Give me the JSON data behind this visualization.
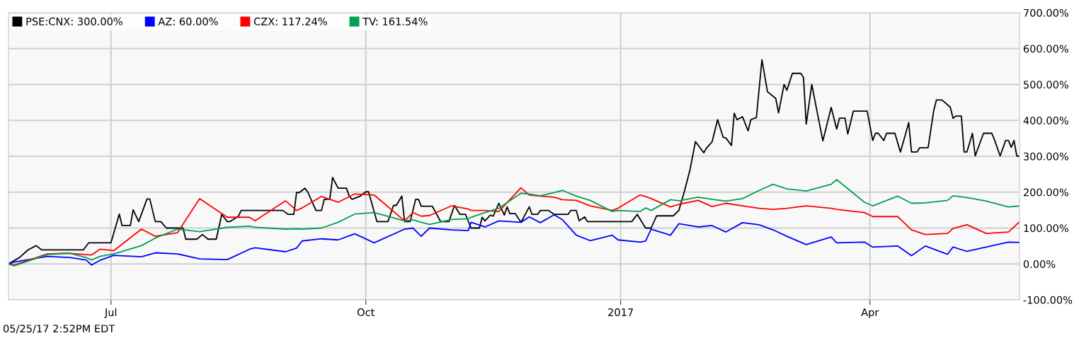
{
  "chart_data": {
    "type": "line",
    "xlim": [
      "2016-05-25",
      "2017-05-25"
    ],
    "xticks": [
      {
        "value": "2016-07-01",
        "label": "Jul"
      },
      {
        "value": "2016-10-01",
        "label": "Oct"
      },
      {
        "value": "2017-01-01",
        "label": "2017"
      },
      {
        "value": "2017-04-01",
        "label": "Apr"
      }
    ],
    "ylim": [
      -100,
      700
    ],
    "yticks": [
      {
        "value": -100,
        "label": "-100.00%"
      },
      {
        "value": 0,
        "label": "0.00%"
      },
      {
        "value": 100,
        "label": "100.00%"
      },
      {
        "value": 200,
        "label": "200.00%"
      },
      {
        "value": 300,
        "label": "300.00%"
      },
      {
        "value": 400,
        "label": "400.00%"
      },
      {
        "value": 500,
        "label": "500.00%"
      },
      {
        "value": 600,
        "label": "600.00%"
      },
      {
        "value": 700,
        "label": "700.00%"
      }
    ],
    "grid": true,
    "legend": "top left",
    "marker": "none",
    "line_style": "solid",
    "annotations": [
      "05/25/17 2:52PM EDT"
    ],
    "x": [
      "2016-05-25",
      "2016-05-27",
      "2016-06-08",
      "2016-06-16",
      "2016-06-22",
      "2016-06-24",
      "2016-06-27",
      "2016-07-02",
      "2016-07-12",
      "2016-07-17",
      "2016-07-25",
      "2016-08-02",
      "2016-08-12",
      "2016-08-20",
      "2016-08-22",
      "2016-09-02",
      "2016-09-06",
      "2016-09-08",
      "2016-09-15",
      "2016-09-21",
      "2016-09-27",
      "2016-10-04",
      "2016-10-15",
      "2016-10-18",
      "2016-10-21",
      "2016-10-24",
      "2016-11-01",
      "2016-11-07",
      "2016-11-08",
      "2016-11-13",
      "2016-11-18",
      "2016-11-26",
      "2016-11-29",
      "2016-12-03",
      "2016-12-08",
      "2016-12-11",
      "2016-12-16",
      "2016-12-21",
      "2016-12-29",
      "2016-12-31",
      "2017-01-08",
      "2017-01-10",
      "2017-01-12",
      "2017-01-19",
      "2017-01-22",
      "2017-01-29",
      "2017-02-03",
      "2017-02-08",
      "2017-02-14",
      "2017-02-20",
      "2017-02-25",
      "2017-03-02",
      "2017-03-09",
      "2017-03-18",
      "2017-03-20",
      "2017-03-30",
      "2017-04-02",
      "2017-04-11",
      "2017-04-16",
      "2017-04-21",
      "2017-04-29",
      "2017-05-01",
      "2017-05-06",
      "2017-05-13",
      "2017-05-21",
      "2017-05-25"
    ],
    "series": [
      {
        "name": "PSE:CNX: 300.00%",
        "color": "#000000",
        "x": [
          "2016-05-25",
          "2016-05-29",
          "2016-06-01",
          "2016-06-04",
          "2016-06-06",
          "2016-06-21",
          "2016-06-23",
          "2016-07-01",
          "2016-07-04",
          "2016-07-05",
          "2016-07-08",
          "2016-07-09",
          "2016-07-11",
          "2016-07-14",
          "2016-07-15",
          "2016-07-17",
          "2016-07-19",
          "2016-07-21",
          "2016-07-27",
          "2016-07-28",
          "2016-08-01",
          "2016-08-03",
          "2016-08-05",
          "2016-08-08",
          "2016-08-10",
          "2016-08-12",
          "2016-08-13",
          "2016-08-16",
          "2016-08-17",
          "2016-09-01",
          "2016-09-03",
          "2016-09-05",
          "2016-09-06",
          "2016-09-07",
          "2016-09-09",
          "2016-09-10",
          "2016-09-13",
          "2016-09-15",
          "2016-09-16",
          "2016-09-18",
          "2016-09-19",
          "2016-09-21",
          "2016-09-24",
          "2016-09-25",
          "2016-09-26",
          "2016-09-29",
          "2016-10-01",
          "2016-10-02",
          "2016-10-05",
          "2016-10-09",
          "2016-10-11",
          "2016-10-12",
          "2016-10-14",
          "2016-10-15",
          "2016-10-17",
          "2016-10-19",
          "2016-10-20",
          "2016-10-21",
          "2016-10-25",
          "2016-10-28",
          "2016-10-31",
          "2016-11-02",
          "2016-11-04",
          "2016-11-06",
          "2016-11-08",
          "2016-11-11",
          "2016-11-12",
          "2016-11-13",
          "2016-11-15",
          "2016-11-16",
          "2016-11-18",
          "2016-11-20",
          "2016-11-21",
          "2016-11-22",
          "2016-11-24",
          "2016-11-26",
          "2016-11-29",
          "2016-11-30",
          "2016-12-02",
          "2016-12-03",
          "2016-12-06",
          "2016-12-08",
          "2016-12-13",
          "2016-12-14",
          "2016-12-16",
          "2016-12-17",
          "2016-12-19",
          "2016-12-20",
          "2017-01-05",
          "2017-01-07",
          "2017-01-10",
          "2017-01-12",
          "2017-01-14",
          "2017-01-20",
          "2017-01-22",
          "2017-01-24",
          "2017-01-26",
          "2017-01-28",
          "2017-01-31",
          "2017-02-01",
          "2017-02-03",
          "2017-02-05",
          "2017-02-07",
          "2017-02-08",
          "2017-02-10",
          "2017-02-11",
          "2017-02-12",
          "2017-02-14",
          "2017-02-16",
          "2017-02-17",
          "2017-02-19",
          "2017-02-21",
          "2017-02-23",
          "2017-02-26",
          "2017-02-27",
          "2017-03-01",
          "2017-03-02",
          "2017-03-04",
          "2017-03-07",
          "2017-03-08",
          "2017-03-09",
          "2017-03-11",
          "2017-03-13",
          "2017-03-15",
          "2017-03-18",
          "2017-03-20",
          "2017-03-21",
          "2017-03-23",
          "2017-03-24",
          "2017-03-26",
          "2017-03-31",
          "2017-04-02",
          "2017-04-03",
          "2017-04-04",
          "2017-04-06",
          "2017-04-07",
          "2017-04-10",
          "2017-04-12",
          "2017-04-14",
          "2017-04-15",
          "2017-04-16",
          "2017-04-18",
          "2017-04-19",
          "2017-04-22",
          "2017-04-24",
          "2017-04-25",
          "2017-04-27",
          "2017-04-30",
          "2017-05-01",
          "2017-05-02",
          "2017-05-04",
          "2017-05-05",
          "2017-05-06",
          "2017-05-08",
          "2017-05-09",
          "2017-05-12",
          "2017-05-15",
          "2017-05-16",
          "2017-05-18",
          "2017-05-20",
          "2017-05-21",
          "2017-05-22",
          "2017-05-23",
          "2017-05-24",
          "2017-05-25"
        ],
        "values": [
          0,
          18,
          39,
          51,
          39,
          39,
          59,
          59,
          139,
          107,
          107,
          151,
          118,
          181,
          181,
          118,
          118,
          100,
          100,
          69,
          69,
          82,
          69,
          69,
          138,
          118,
          118,
          133,
          149,
          149,
          138,
          138,
          199,
          199,
          211,
          201,
          149,
          149,
          180,
          180,
          241,
          211,
          211,
          189,
          180,
          189,
          201,
          201,
          118,
          118,
          163,
          163,
          189,
          118,
          118,
          180,
          180,
          161,
          161,
          118,
          118,
          163,
          138,
          138,
          100,
          100,
          130,
          120,
          136,
          133,
          169,
          136,
          159,
          140,
          140,
          116,
          159,
          138,
          138,
          149,
          149,
          138,
          138,
          149,
          149,
          120,
          131,
          118,
          118,
          138,
          100,
          100,
          134,
          134,
          149,
          202,
          261,
          341,
          310,
          323,
          340,
          402,
          353,
          351,
          330,
          420,
          402,
          410,
          371,
          402,
          408,
          569,
          480,
          461,
          421,
          500,
          484,
          531,
          531,
          520,
          390,
          500,
          421,
          343,
          436,
          376,
          406,
          406,
          362,
          426,
          426,
          344,
          364,
          364,
          344,
          364,
          364,
          312,
          366,
          394,
          312,
          312,
          324,
          324,
          426,
          457,
          457,
          437,
          406,
          412,
          412,
          312,
          312,
          364,
          301,
          364,
          364,
          345,
          301,
          344,
          344,
          325,
          344,
          301,
          300
        ]
      },
      {
        "name": "AZ: 60.00%",
        "color": "#0000ff",
        "values": [
          0,
          5,
          21,
          18,
          11,
          -3,
          10,
          24,
          20,
          31,
          28,
          14,
          12,
          41,
          45,
          34,
          44,
          64,
          70,
          67,
          84,
          59,
          97,
          100,
          77,
          100,
          95,
          93,
          116,
          103,
          120,
          116,
          131,
          115,
          137,
          123,
          80,
          65,
          80,
          67,
          61,
          64,
          97,
          80,
          112,
          103,
          107,
          89,
          115,
          109,
          95,
          77,
          54,
          75,
          59,
          61,
          47,
          50,
          23,
          50,
          27,
          47,
          35,
          47,
          61,
          60
        ]
      },
      {
        "name": "CZX: 117.24%",
        "color": "#ff0000",
        "values": [
          0,
          -3,
          28,
          30,
          26,
          25,
          41,
          37,
          97,
          77,
          87,
          182,
          130,
          130,
          120,
          176,
          149,
          156,
          188,
          172,
          195,
          192,
          120,
          143,
          133,
          135,
          162,
          153,
          149,
          149,
          146,
          212,
          192,
          189,
          186,
          179,
          177,
          162,
          149,
          155,
          192,
          188,
          182,
          159,
          166,
          177,
          160,
          169,
          162,
          155,
          152,
          155,
          162,
          155,
          152,
          143,
          132,
          132,
          95,
          82,
          85,
          99,
          109,
          85,
          89,
          117.24
        ]
      },
      {
        "name": "TV: 161.54%",
        "color": "#00a050",
        "values": [
          0,
          -5,
          26,
          30,
          18,
          11,
          21,
          28,
          51,
          72,
          97,
          90,
          102,
          105,
          102,
          97,
          98,
          97,
          100,
          116,
          139,
          143,
          120,
          123,
          116,
          110,
          124,
          126,
          130,
          143,
          155,
          197,
          195,
          190,
          199,
          205,
          189,
          177,
          146,
          149,
          146,
          156,
          149,
          179,
          176,
          186,
          180,
          175,
          182,
          205,
          222,
          209,
          203,
          222,
          235,
          172,
          162,
          189,
          169,
          170,
          177,
          190,
          185,
          175,
          159,
          161.54
        ]
      }
    ]
  }
}
